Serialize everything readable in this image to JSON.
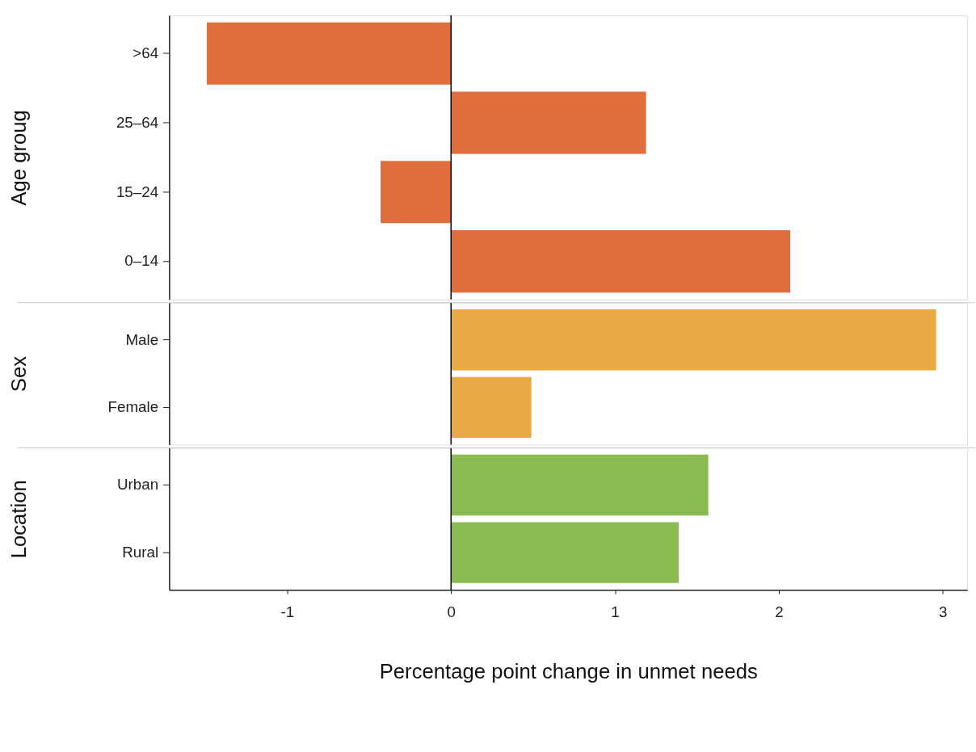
{
  "chart_data": [
    {
      "type": "bar",
      "orientation": "horizontal",
      "ylabel": "Age groug",
      "categories": [
        ">64",
        "25–64",
        "15–24",
        "0–14"
      ],
      "values": [
        -1.49,
        1.19,
        -0.43,
        2.07
      ],
      "color": "#e06e3c",
      "xlim": [
        -1.72,
        3.15
      ],
      "xticks": [
        -1,
        0,
        1,
        2,
        3
      ],
      "tick_labels": "y",
      "grid": false,
      "legend": false,
      "ref_lines": [
        {
          "axis": "x",
          "value": 0,
          "color": "#000000"
        }
      ]
    },
    {
      "type": "bar",
      "orientation": "horizontal",
      "ylabel": "Sex",
      "categories": [
        "Male",
        "Female"
      ],
      "values": [
        2.96,
        0.49
      ],
      "color": "#e9a841",
      "xlim": [
        -1.72,
        3.15
      ],
      "xticks": [
        -1,
        0,
        1,
        2,
        3
      ],
      "tick_labels": "y",
      "grid": false,
      "legend": false,
      "ref_lines": [
        {
          "axis": "x",
          "value": 0,
          "color": "#000000"
        }
      ]
    },
    {
      "type": "bar",
      "orientation": "horizontal",
      "ylabel": "Location",
      "xlabel": "Percentage point change in unmet needs",
      "categories": [
        "Urban",
        "Rural"
      ],
      "values": [
        1.57,
        1.39
      ],
      "color": "#8cba52",
      "xlim": [
        -1.72,
        3.15
      ],
      "xticks": [
        -1,
        0,
        1,
        2,
        3
      ],
      "grid": false,
      "legend": false,
      "ref_lines": [
        {
          "axis": "x",
          "value": 0,
          "color": "#000000"
        }
      ]
    }
  ]
}
